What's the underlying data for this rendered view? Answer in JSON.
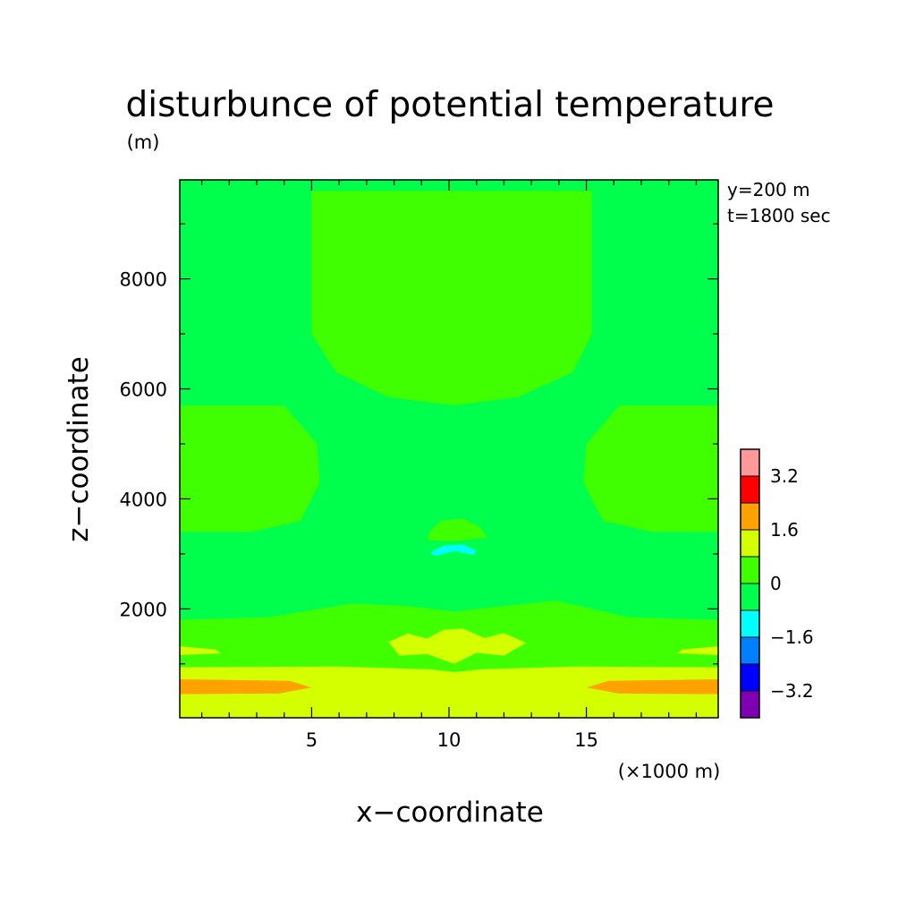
{
  "chart_data": {
    "type": "heatmap",
    "title": "disturbunce of potential temperature",
    "title_unit": "(m)",
    "xlabel": "x−coordinate",
    "ylabel": "z−coordinate",
    "x_unit": "(×1000 m)",
    "xlim": [
      0.2,
      19.8
    ],
    "ylim": [
      20,
      9800
    ],
    "x_ticks": [
      5,
      10,
      15
    ],
    "x_tick_labels": [
      "5",
      "10",
      "15"
    ],
    "y_ticks": [
      2000,
      4000,
      6000,
      8000
    ],
    "y_tick_labels": [
      "2000",
      "4000",
      "6000",
      "8000"
    ],
    "annotations": [
      "y=200 m",
      "t=1800 sec"
    ],
    "colorbar": {
      "boundaries": [
        -4.0,
        -3.2,
        -2.4,
        -1.6,
        -0.8,
        0,
        0.8,
        1.6,
        2.4,
        3.2,
        4.0
      ],
      "colors": [
        "#7f00b2",
        "#0000ff",
        "#0080ff",
        "#00ffff",
        "#00ff4d",
        "#40ff00",
        "#d4ff00",
        "#ffa200",
        "#ff0000",
        "#ff9999"
      ],
      "tick_values": [
        -3.2,
        -1.6,
        0,
        1.6,
        3.2
      ],
      "tick_labels": [
        "−3.2",
        "−1.6",
        "0",
        "1.6",
        "3.2"
      ]
    },
    "regions": [
      {
        "level": "0 to 0.8",
        "color": "#40ff00",
        "description": "upper cap",
        "outline": [
          [
            5.0,
            9600
          ],
          [
            15.2,
            9600
          ],
          [
            15.2,
            7000
          ],
          [
            14.5,
            6300
          ],
          [
            12.5,
            5850
          ],
          [
            10.2,
            5700
          ],
          [
            7.8,
            5850
          ],
          [
            5.9,
            6300
          ],
          [
            5.0,
            7000
          ]
        ]
      },
      {
        "level": "0 to 0.8",
        "color": "#40ff00",
        "description": "left lobe",
        "outline": [
          [
            0.2,
            5700
          ],
          [
            4.0,
            5700
          ],
          [
            5.2,
            5000
          ],
          [
            5.3,
            4300
          ],
          [
            4.6,
            3600
          ],
          [
            2.8,
            3400
          ],
          [
            0.2,
            3400
          ]
        ]
      },
      {
        "level": "0 to 0.8",
        "color": "#40ff00",
        "description": "right lobe",
        "outline": [
          [
            19.8,
            5700
          ],
          [
            16.2,
            5700
          ],
          [
            15.0,
            5000
          ],
          [
            14.9,
            4300
          ],
          [
            15.6,
            3600
          ],
          [
            17.4,
            3400
          ],
          [
            19.8,
            3400
          ]
        ]
      },
      {
        "level": "0 to 0.8",
        "color": "#40ff00",
        "description": "small cap above cold spot",
        "outline": [
          [
            9.3,
            3400
          ],
          [
            9.7,
            3600
          ],
          [
            10.5,
            3640
          ],
          [
            11.1,
            3500
          ],
          [
            11.4,
            3300
          ],
          [
            10.2,
            3230
          ],
          [
            9.2,
            3250
          ]
        ]
      },
      {
        "level": "-1.6 to -0.8",
        "color": "#00ffff",
        "description": "cold arc",
        "outline": [
          [
            9.3,
            3020
          ],
          [
            9.8,
            3150
          ],
          [
            10.5,
            3170
          ],
          [
            11.0,
            3060
          ],
          [
            10.9,
            2980
          ],
          [
            10.2,
            3050
          ],
          [
            9.5,
            2960
          ]
        ]
      },
      {
        "level": "0 to 0.8",
        "color": "#40ff00",
        "description": "lower band",
        "outline": [
          [
            0.2,
            1800
          ],
          [
            3.5,
            1850
          ],
          [
            6.5,
            2100
          ],
          [
            8.5,
            2050
          ],
          [
            10.2,
            1950
          ],
          [
            12,
            2050
          ],
          [
            13.9,
            2150
          ],
          [
            16.5,
            1850
          ],
          [
            19.8,
            1800
          ],
          [
            19.8,
            20
          ],
          [
            0.2,
            20
          ]
        ]
      },
      {
        "level": "0.8 to 1.6",
        "color": "#d4ff00",
        "description": "small left patch",
        "outline": [
          [
            0.2,
            1320
          ],
          [
            1.5,
            1260
          ],
          [
            1.7,
            1190
          ],
          [
            0.2,
            1160
          ]
        ]
      },
      {
        "level": "0.8 to 1.6",
        "color": "#d4ff00",
        "description": "small right patch",
        "outline": [
          [
            19.8,
            1320
          ],
          [
            18.5,
            1260
          ],
          [
            18.3,
            1190
          ],
          [
            19.8,
            1160
          ]
        ]
      },
      {
        "level": "0.8 to 1.6",
        "color": "#d4ff00",
        "description": "central warm blobs",
        "outline": [
          [
            7.8,
            1400
          ],
          [
            8.5,
            1550
          ],
          [
            9.2,
            1460
          ],
          [
            9.8,
            1620
          ],
          [
            10.5,
            1640
          ],
          [
            11.3,
            1470
          ],
          [
            12.0,
            1560
          ],
          [
            12.8,
            1380
          ],
          [
            12.0,
            1150
          ],
          [
            11.0,
            1200
          ],
          [
            10.2,
            1000
          ],
          [
            9.2,
            1180
          ],
          [
            8.2,
            1150
          ]
        ]
      },
      {
        "level": "0.8 to 1.6",
        "color": "#d4ff00",
        "description": "bottom warm band",
        "outline": [
          [
            0.2,
            940
          ],
          [
            6.0,
            950
          ],
          [
            9.3,
            900
          ],
          [
            10.2,
            850
          ],
          [
            11.2,
            900
          ],
          [
            14.5,
            950
          ],
          [
            19.8,
            940
          ],
          [
            19.8,
            20
          ],
          [
            0.2,
            20
          ]
        ]
      },
      {
        "level": "1.6 to 2.4",
        "color": "#ffa200",
        "description": "left warm core",
        "outline": [
          [
            0.2,
            720
          ],
          [
            4.2,
            690
          ],
          [
            5.0,
            570
          ],
          [
            3.8,
            460
          ],
          [
            0.2,
            450
          ]
        ]
      },
      {
        "level": "1.6 to 2.4",
        "color": "#ffa200",
        "description": "right warm core",
        "outline": [
          [
            19.8,
            720
          ],
          [
            15.8,
            690
          ],
          [
            15.0,
            570
          ],
          [
            16.2,
            460
          ],
          [
            19.8,
            450
          ]
        ]
      }
    ],
    "background_level": "-0.8 to 0",
    "background_color": "#00ff4d"
  }
}
